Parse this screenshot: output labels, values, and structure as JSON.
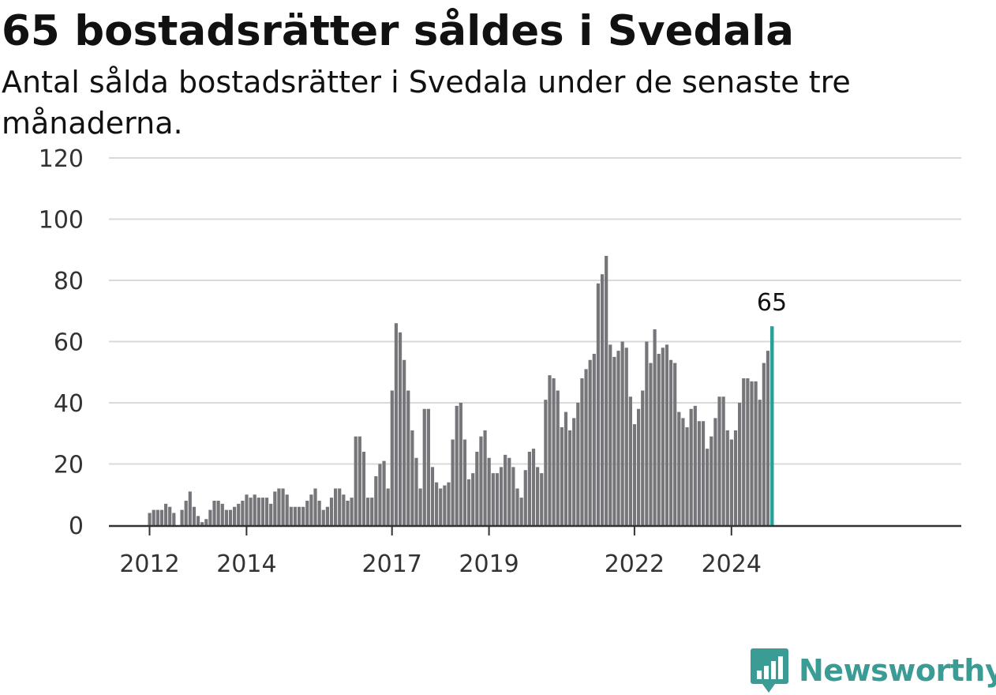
{
  "header": {
    "title": "65 bostadsrätter såldes i Svedala",
    "subtitle": "Antal sålda bostadsrätter i Svedala under de senaste tre månaderna."
  },
  "brand": {
    "name": "Newsworthy",
    "icon": "bar-chart-speech-bubble-icon"
  },
  "colors": {
    "bar": "#76767a",
    "highlight": "#2aa198",
    "grid": "#d9d9d9",
    "axis": "#333333",
    "brand": "#3a9c95"
  },
  "chart_data": {
    "type": "bar",
    "ylim": [
      0,
      120
    ],
    "yticks": [
      0,
      20,
      40,
      60,
      80,
      100,
      120
    ],
    "xticks": [
      {
        "label": "2012",
        "date": "2012-01"
      },
      {
        "label": "2014",
        "date": "2014-01"
      },
      {
        "label": "2017",
        "date": "2017-01"
      },
      {
        "label": "2019",
        "date": "2019-01"
      },
      {
        "label": "2022",
        "date": "2022-01"
      },
      {
        "label": "2024",
        "date": "2024-01"
      }
    ],
    "grid": true,
    "start_month": "2012-01",
    "values": [
      4,
      5,
      5,
      5,
      7,
      6,
      4,
      0,
      5,
      8,
      11,
      6,
      3,
      1,
      2,
      5,
      8,
      8,
      7,
      5,
      5,
      6,
      7,
      8,
      10,
      9,
      10,
      9,
      9,
      9,
      7,
      11,
      12,
      12,
      10,
      6,
      6,
      6,
      6,
      8,
      10,
      12,
      8,
      5,
      6,
      9,
      12,
      12,
      10,
      8,
      9,
      29,
      29,
      24,
      9,
      9,
      16,
      20,
      21,
      12,
      44,
      66,
      63,
      54,
      44,
      31,
      22,
      12,
      38,
      38,
      19,
      14,
      12,
      13,
      14,
      28,
      39,
      40,
      28,
      15,
      17,
      24,
      29,
      31,
      22,
      17,
      17,
      19,
      23,
      22,
      19,
      12,
      9,
      18,
      24,
      25,
      19,
      17,
      41,
      49,
      48,
      44,
      32,
      37,
      31,
      35,
      40,
      48,
      51,
      54,
      56,
      79,
      82,
      88,
      59,
      55,
      57,
      60,
      58,
      42,
      33,
      38,
      44,
      60,
      53,
      64,
      56,
      58,
      59,
      54,
      53,
      37,
      35,
      32,
      38,
      39,
      34,
      34,
      25,
      29,
      35,
      42,
      42,
      31,
      28,
      31,
      40,
      48,
      48,
      47,
      47,
      41,
      53,
      57,
      65
    ],
    "highlight": {
      "value": 65,
      "label": "65"
    }
  }
}
